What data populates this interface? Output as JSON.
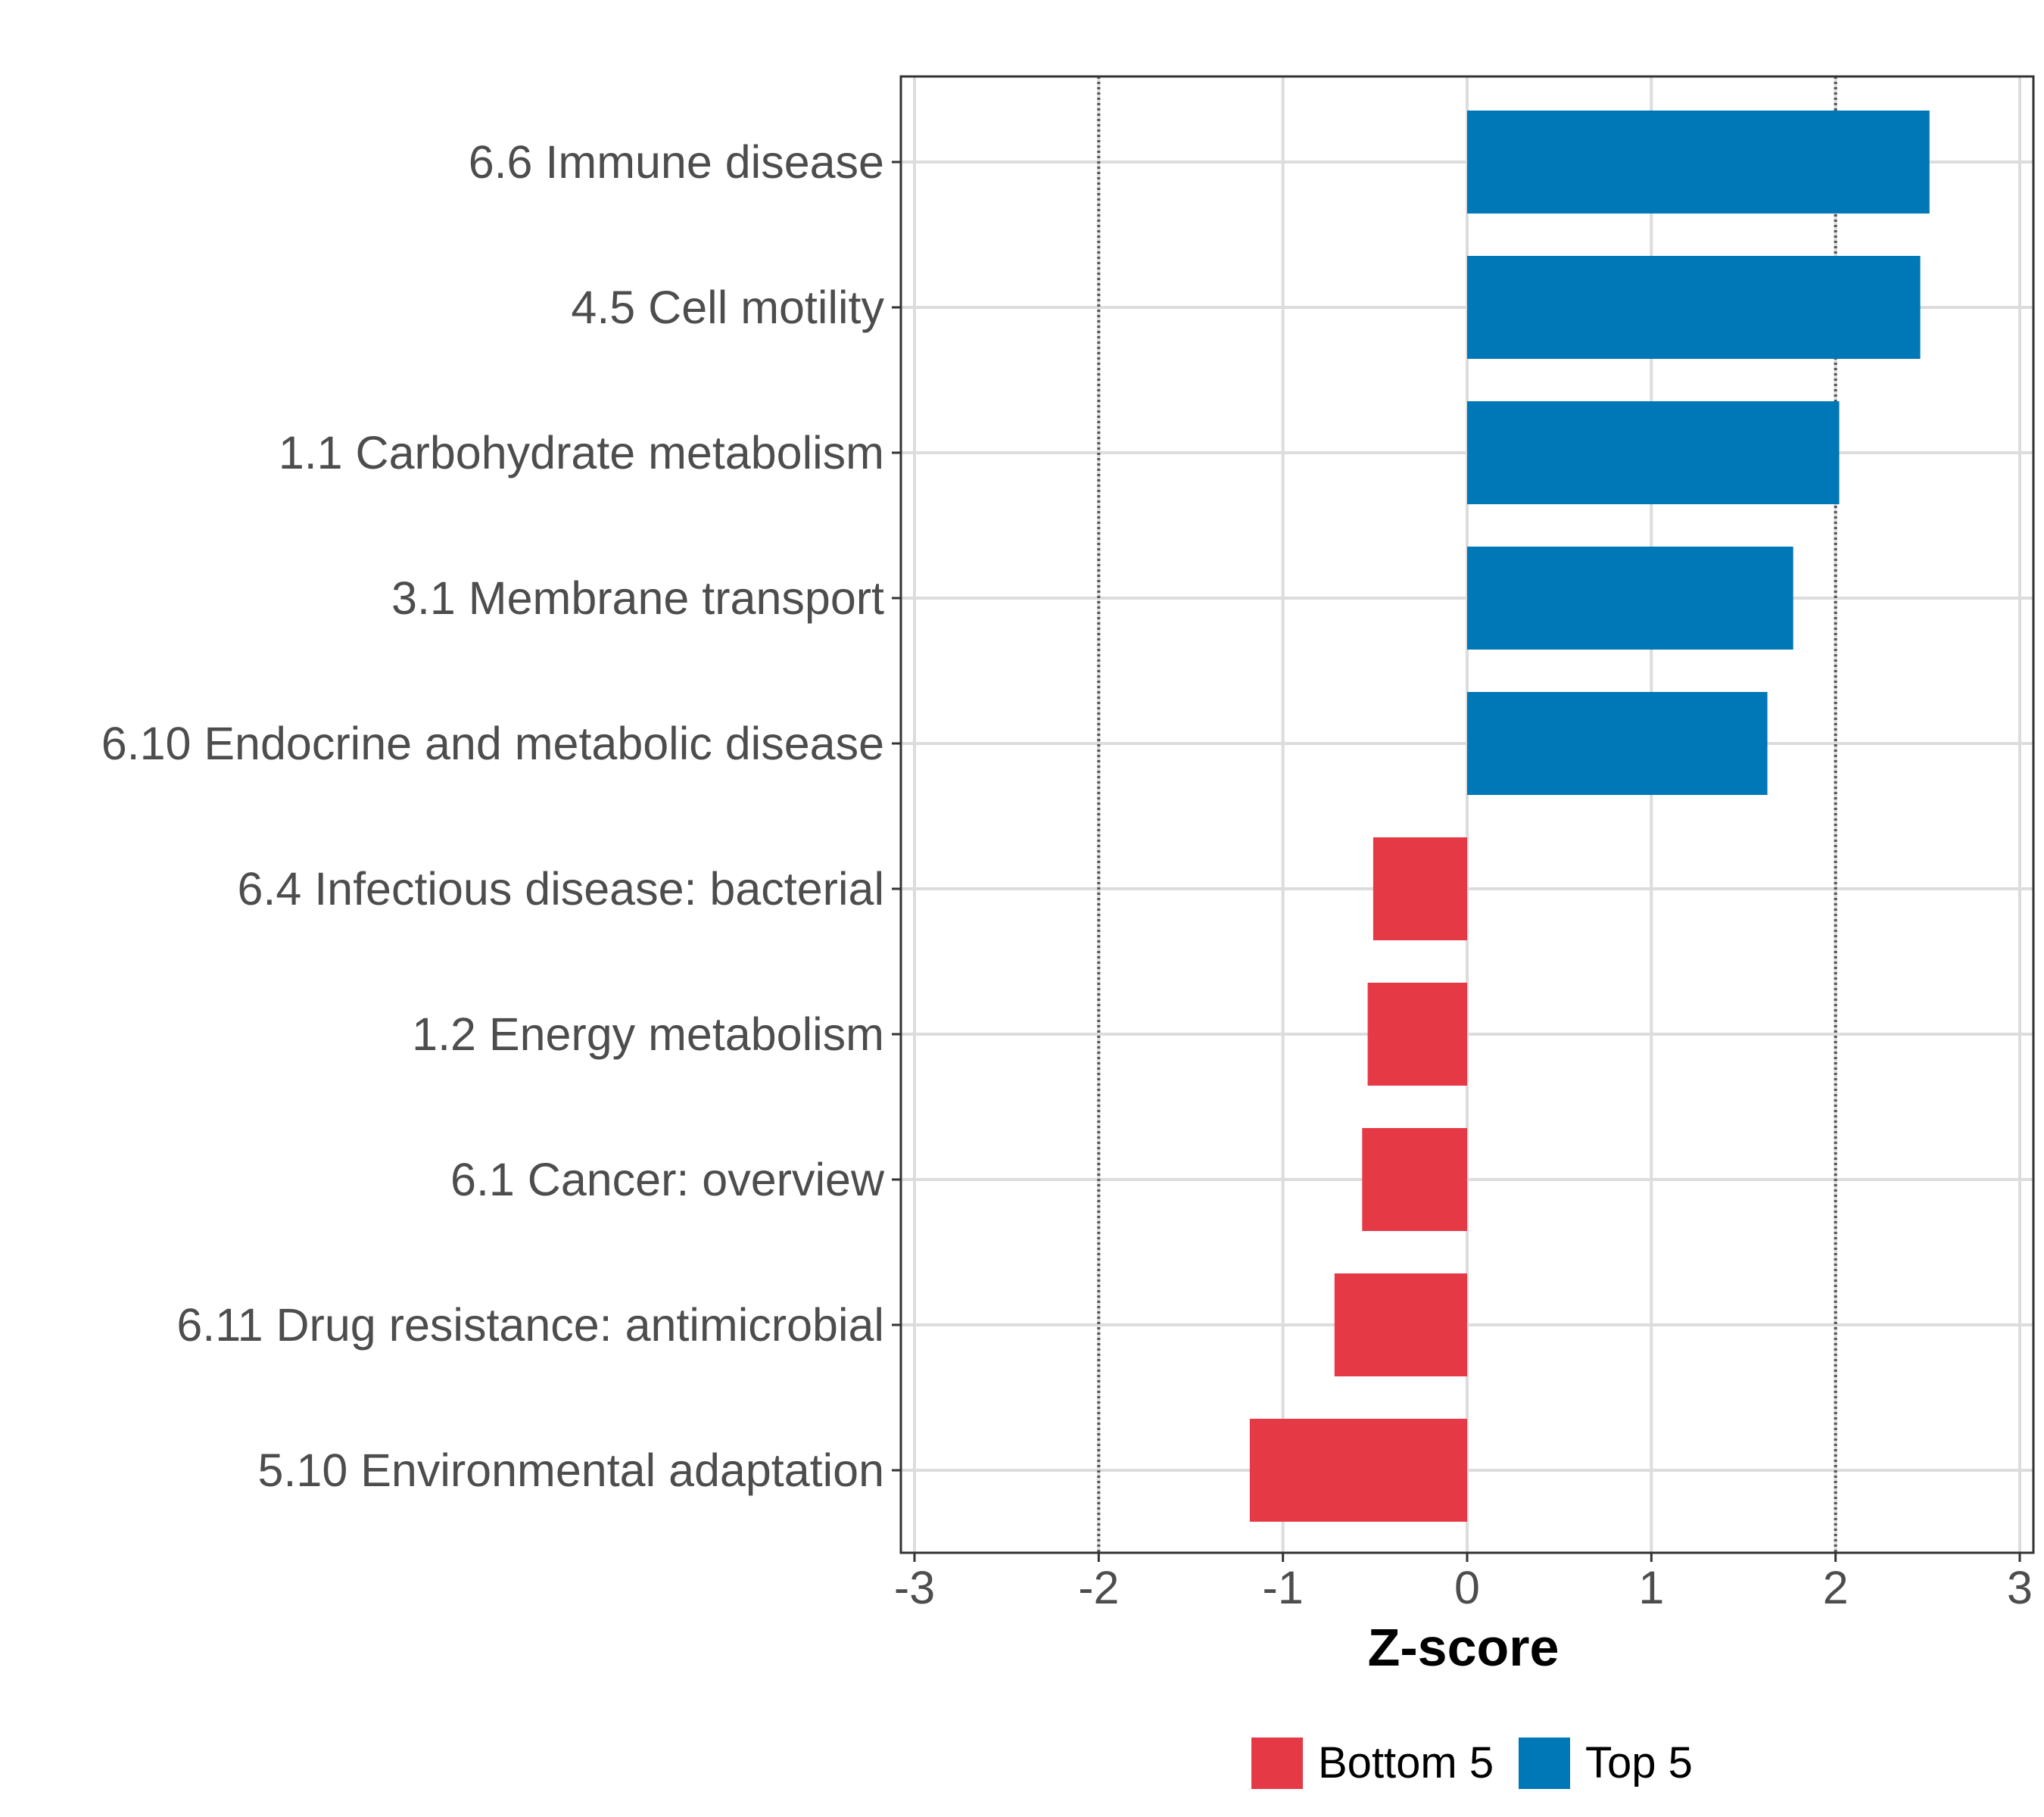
{
  "chart_data": {
    "type": "bar",
    "orientation": "horizontal",
    "title": "",
    "xlabel": "Z-score",
    "ylabel": "",
    "xlim": [
      -3,
      3
    ],
    "x_ticks": [
      "-3",
      "-2",
      "-1",
      "0",
      "1",
      "2",
      "3"
    ],
    "reference_lines": [
      -2,
      2
    ],
    "grid": true,
    "legend_position": "bottom",
    "categories": [
      "6.6 Immune disease",
      "4.5 Cell motility",
      "1.1 Carbohydrate metabolism",
      "3.1 Membrane transport",
      "6.10 Endocrine and metabolic disease",
      "6.4 Infectious disease: bacterial",
      "1.2 Energy metabolism",
      "6.1 Cancer: overview",
      "6.11 Drug resistance: antimicrobial",
      "5.10 Environmental adaptation"
    ],
    "values": [
      2.51,
      2.46,
      2.02,
      1.77,
      1.63,
      -0.51,
      -0.54,
      -0.57,
      -0.72,
      -1.18
    ],
    "groups": [
      "Top 5",
      "Top 5",
      "Top 5",
      "Top 5",
      "Top 5",
      "Bottom 5",
      "Bottom 5",
      "Bottom 5",
      "Bottom 5",
      "Bottom 5"
    ],
    "legend": [
      {
        "name": "Bottom 5",
        "color": "#E63946"
      },
      {
        "name": "Top 5",
        "color": "#0077B6"
      }
    ]
  }
}
